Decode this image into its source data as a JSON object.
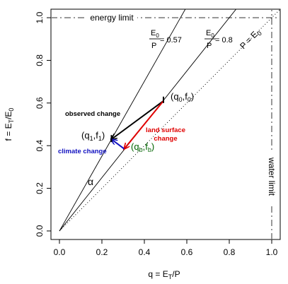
{
  "chart_data": {
    "type": "line",
    "xlabel": "q = E",
    "xlabel_sub": "T",
    "xlabel_tail": "/P",
    "ylabel": "f = E",
    "ylabel_sub": "T",
    "ylabel_tail": "/E",
    "ylabel_sub2": "0",
    "xlim": [
      -0.04,
      1.04
    ],
    "ylim": [
      -0.04,
      1.04
    ],
    "x_ticks": [
      0.0,
      0.2,
      0.4,
      0.6,
      0.8,
      1.0
    ],
    "x_tick_labels": [
      "0.0",
      "0.2",
      "0.4",
      "0.6",
      "0.8",
      "1.0"
    ],
    "y_ticks": [
      0.0,
      0.2,
      0.4,
      0.6,
      0.8,
      1.0
    ],
    "y_tick_labels": [
      "0.0",
      "0.2",
      "0.4",
      "0.6",
      "0.8",
      "1.0"
    ],
    "limits": {
      "energy_limit_label": "energy limit",
      "energy_limit_y": 1.0,
      "water_limit_label": "water limit",
      "water_limit_x": 1.0
    },
    "ratio_lines": [
      {
        "slope": 1.754,
        "num": "E",
        "num_sub": "0",
        "den": "P",
        "value": " = 0.57"
      },
      {
        "slope": 1.25,
        "num": "E",
        "num_sub": "0",
        "den": "P",
        "value": " = 0.8"
      }
    ],
    "pe_line": {
      "slope": 1.0,
      "label": "P = E",
      "label_sub": "0"
    },
    "points": {
      "p0": {
        "x": 0.49,
        "y": 0.61,
        "label": "(q",
        "sub1": "0",
        "mid": ",f",
        "sub2": "0",
        "end": ")"
      },
      "p1": {
        "x": 0.245,
        "y": 0.43,
        "label": "(q",
        "sub1": "1",
        "mid": ",f",
        "sub2": "1",
        "end": ")"
      },
      "pb": {
        "x": 0.305,
        "y": 0.385,
        "label": "(q",
        "sub1": "b",
        "mid": ",f",
        "sub2": "b",
        "end": ")"
      }
    },
    "arrows": [
      {
        "name": "observed change",
        "from": "p0",
        "to": "p1",
        "color": "#000000"
      },
      {
        "name": "land surface change",
        "from": "p0",
        "to": "pb",
        "color": "#e00000"
      },
      {
        "name": "climate change",
        "from": "pb",
        "to": "p1",
        "color": "#1010c0"
      }
    ],
    "annotations": {
      "observed_change": "observed change",
      "land_surface_1": "land surface",
      "land_surface_2": "change",
      "climate_change": "climate change",
      "alpha": "α"
    },
    "colors": {
      "observed": "#000000",
      "land_surface": "#e00000",
      "climate": "#1010c0",
      "baseline_label": "#006400",
      "limit_line": "#808080"
    }
  }
}
